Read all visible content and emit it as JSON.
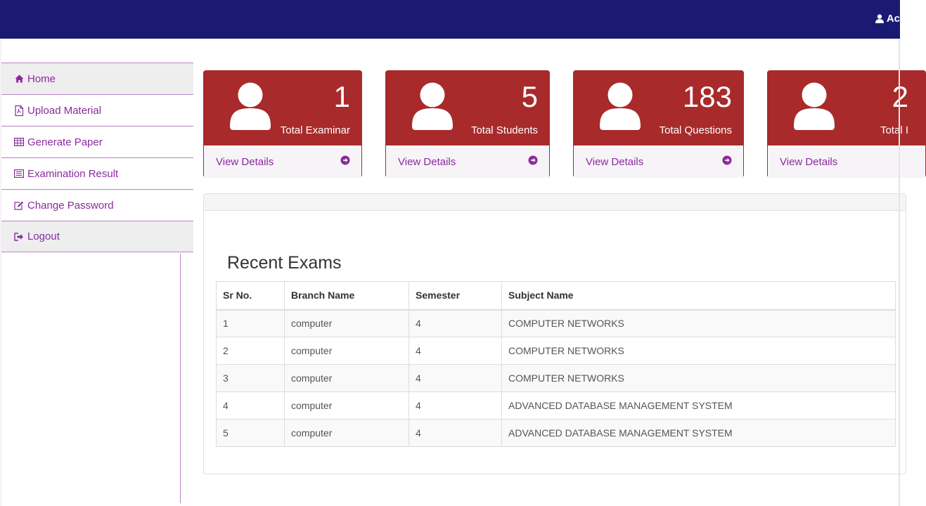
{
  "header": {
    "user_label": "Ac",
    "user_icon": "user-icon",
    "bg_color": "#1a1a72"
  },
  "sidebar": {
    "items": [
      {
        "label": "Home",
        "icon": "home-icon"
      },
      {
        "label": "Upload Material",
        "icon": "file-pdf-icon"
      },
      {
        "label": "Generate Paper",
        "icon": "table-icon"
      },
      {
        "label": "Examination Result",
        "icon": "list-alt-icon"
      },
      {
        "label": "Change Password",
        "icon": "edit-icon"
      },
      {
        "label": "Logout",
        "icon": "sign-out-icon"
      }
    ],
    "link_color": "#8a2a9e"
  },
  "stats": [
    {
      "value": "1",
      "label": "Total Examinar",
      "link": "View Details"
    },
    {
      "value": "5",
      "label": "Total Students",
      "link": "View Details"
    },
    {
      "value": "183",
      "label": "Total Questions",
      "link": "View Details"
    },
    {
      "value": "2",
      "label": "Total I",
      "link": "View Details"
    }
  ],
  "card_color": "#a82a2b",
  "recent_exams": {
    "title": "Recent Exams",
    "columns": [
      "Sr No.",
      "Branch Name",
      "Semester",
      "Subject Name"
    ],
    "rows": [
      [
        "1",
        "computer",
        "4",
        "COMPUTER NETWORKS"
      ],
      [
        "2",
        "computer",
        "4",
        "COMPUTER NETWORKS"
      ],
      [
        "3",
        "computer",
        "4",
        "COMPUTER NETWORKS"
      ],
      [
        "4",
        "computer",
        "4",
        "ADVANCED DATABASE MANAGEMENT SYSTEM"
      ],
      [
        "5",
        "computer",
        "4",
        "ADVANCED DATABASE MANAGEMENT SYSTEM"
      ]
    ]
  }
}
